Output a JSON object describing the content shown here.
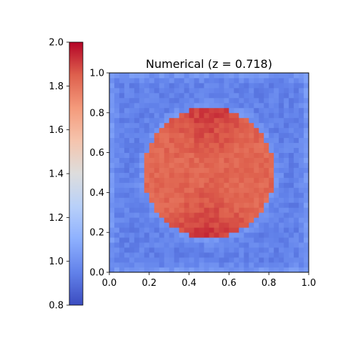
{
  "chart_data": {
    "type": "heatmap",
    "title": "Numerical (z = 0.718)",
    "xlabel": "",
    "ylabel": "",
    "xlim": [
      0.0,
      1.0
    ],
    "ylim": [
      0.0,
      1.0
    ],
    "x_ticks": [
      "0.0",
      "0.2",
      "0.4",
      "0.6",
      "0.8",
      "1.0"
    ],
    "y_ticks": [
      "0.0",
      "0.2",
      "0.4",
      "0.6",
      "0.8",
      "1.0"
    ],
    "grid": false,
    "colormap": "coolwarm",
    "colorbar": {
      "position": "left",
      "range": [
        0.8,
        2.0
      ],
      "ticks": [
        "0.8",
        "1.0",
        "1.2",
        "1.4",
        "1.6",
        "1.8",
        "2.0"
      ]
    },
    "field": {
      "resolution": [
        40,
        40
      ],
      "background_value": 0.95,
      "disk": {
        "center": [
          0.5,
          0.5
        ],
        "radius": 0.33,
        "interior_value": 1.83,
        "top_bottom_value": 1.92
      }
    }
  }
}
